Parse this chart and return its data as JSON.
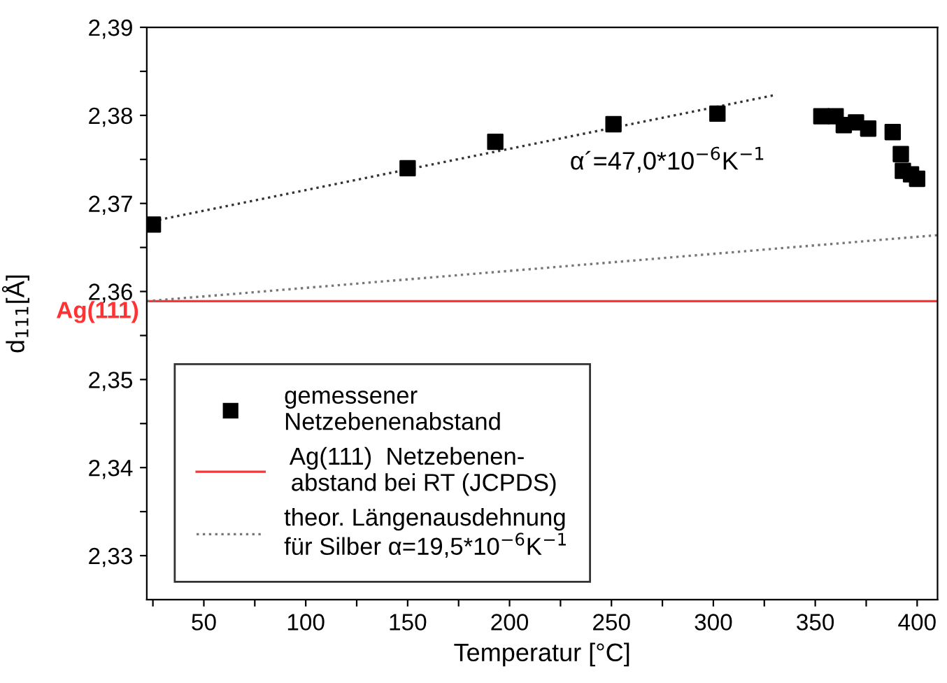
{
  "chart_data": {
    "type": "scatter",
    "xlabel": "Temperatur [°C]",
    "ylabel": "d$_{111}$[Å]",
    "xlim": [
      22,
      410
    ],
    "ylim": [
      2.325,
      2.39
    ],
    "xticks": [
      {
        "value": 25,
        "label": null
      },
      50,
      {
        "value": 75,
        "label": null
      },
      100,
      {
        "value": 125,
        "label": null
      },
      150,
      {
        "value": 175,
        "label": null
      },
      200,
      {
        "value": 225,
        "label": null
      },
      250,
      {
        "value": 275,
        "label": null
      },
      300,
      {
        "value": 325,
        "label": null
      },
      350,
      {
        "value": 375,
        "label": null
      },
      400
    ],
    "yticks": [
      {
        "value": 2.33,
        "label": "2,33"
      },
      {
        "value": 2.335,
        "label": null
      },
      {
        "value": 2.34,
        "label": "2,34"
      },
      {
        "value": 2.345,
        "label": null
      },
      {
        "value": 2.35,
        "label": "2,35"
      },
      {
        "value": 2.355,
        "label": null
      },
      {
        "value": 2.36,
        "label": "2,36"
      },
      {
        "value": 2.365,
        "label": null
      },
      {
        "value": 2.37,
        "label": "2,37"
      },
      {
        "value": 2.375,
        "label": null
      },
      {
        "value": 2.38,
        "label": "2,38"
      },
      {
        "value": 2.385,
        "label": null
      },
      {
        "value": 2.39,
        "label": "2,39"
      }
    ],
    "grid": false,
    "legend": "bottom left",
    "series": [
      {
        "name": "gemessener\nNetzebenenabstand",
        "marker": "square",
        "color": "#000000",
        "x": [
          25,
          150,
          193,
          251,
          302,
          353,
          360,
          364,
          370,
          376,
          388,
          392,
          393,
          397,
          400
        ],
        "values": [
          2.3676,
          2.374,
          2.377,
          2.379,
          2.3802,
          2.3799,
          2.3799,
          2.3789,
          2.3792,
          2.3785,
          2.3781,
          2.3756,
          2.3737,
          2.3733,
          2.3728
        ]
      },
      {
        "name": " Ag(111)  Netzebenen-\n abstand bei RT (JCPDS)",
        "type": "line",
        "line_style": "solid",
        "color": "#ff3333",
        "x": [
          22,
          410
        ],
        "values": [
          2.3589,
          2.3589
        ]
      },
      {
        "name": "theor. Längenausdehnung\nfür Silber α=19,5*10$^{−6}$K$^{−1}$",
        "type": "line",
        "line_style": "dotted",
        "color": "#777777",
        "x": [
          22,
          410
        ],
        "values": [
          2.3589,
          2.3664
        ]
      },
      {
        "type": "line",
        "line_style": "dotted",
        "color": "#333333",
        "x": [
          25,
          330
        ],
        "values": [
          2.368,
          2.3823
        ]
      }
    ],
    "annotations": [
      "α´=47,0*10$^{−6}$K$^{−1}$",
      {
        "text": "Ag(111)",
        "x": 22,
        "y": 2.3589
      }
    ]
  }
}
